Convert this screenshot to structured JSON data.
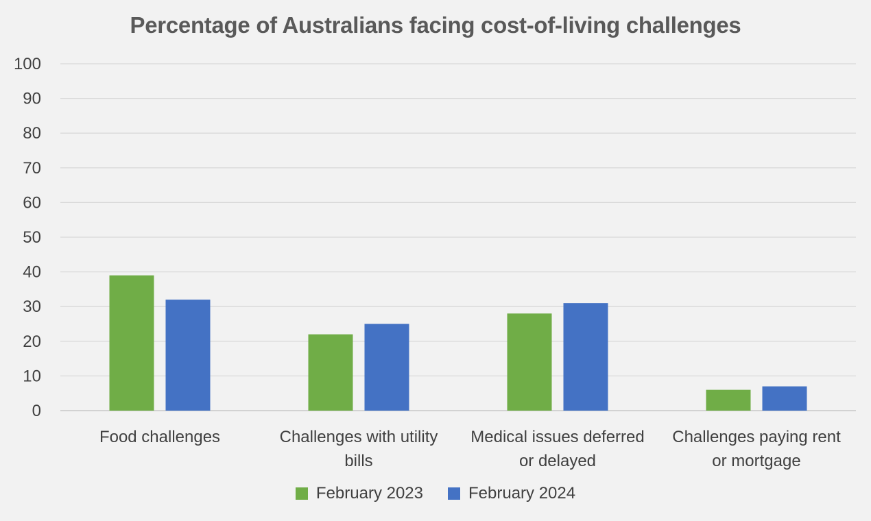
{
  "chart_data": {
    "type": "bar",
    "title": "Percentage of Australians facing cost-of-living challenges",
    "xlabel": "",
    "ylabel": "",
    "ylim": [
      0,
      100
    ],
    "yticks": [
      0,
      10,
      20,
      30,
      40,
      50,
      60,
      70,
      80,
      90,
      100
    ],
    "grid": true,
    "legend_position": "bottom",
    "categories": [
      [
        "Food challenges"
      ],
      [
        "Challenges with utility",
        "bills"
      ],
      [
        "Medical issues deferred",
        "or delayed"
      ],
      [
        "Challenges paying rent",
        "or mortgage"
      ]
    ],
    "series": [
      {
        "name": "February 2023",
        "color": "#70ad47",
        "values": [
          39,
          22,
          28,
          6
        ]
      },
      {
        "name": "February 2024",
        "color": "#4472c4",
        "values": [
          32,
          25,
          31,
          7
        ]
      }
    ]
  }
}
